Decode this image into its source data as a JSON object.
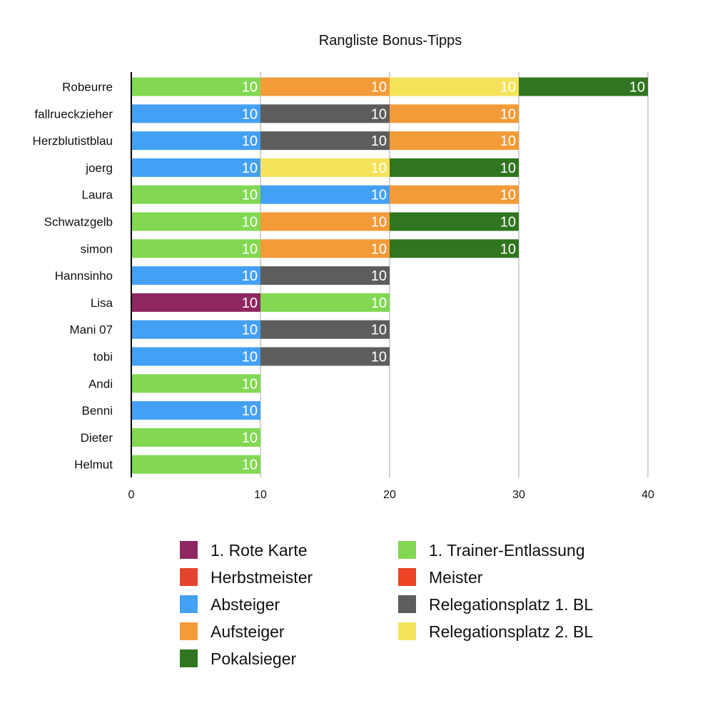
{
  "chart_data": {
    "type": "bar",
    "orientation": "horizontal",
    "stacked": true,
    "title": "Rangliste Bonus-Tipps",
    "xlabel": "",
    "ylabel": "",
    "xlim": [
      0,
      40
    ],
    "x_ticks": [
      "0",
      "10",
      "20",
      "30",
      "40"
    ],
    "grid": true,
    "legend_position": "bottom",
    "categories": [
      "Robeurre",
      "fallrueckzieher",
      "Herzblutistblau",
      "joerg",
      "Laura",
      "Schwatzgelb",
      "simon",
      "Hannsinho",
      "Lisa",
      "Mani 07",
      "tobi",
      "Andi",
      "Benni",
      "Dieter",
      "Helmut"
    ],
    "series": [
      {
        "name": "1. Rote Karte",
        "color": "#8e2661"
      },
      {
        "name": "1. Trainer-Entlassung",
        "color": "#82d852"
      },
      {
        "name": "Herbstmeister",
        "color": "#e5432e"
      },
      {
        "name": "Meister",
        "color": "#ec4425"
      },
      {
        "name": "Absteiger",
        "color": "#44a0f5"
      },
      {
        "name": "Relegationsplatz 1. BL",
        "color": "#5d5d5d"
      },
      {
        "name": "Aufsteiger",
        "color": "#f29b38"
      },
      {
        "name": "Relegationsplatz 2. BL",
        "color": "#f6e35a"
      },
      {
        "name": "Pokalsieger",
        "color": "#30751f"
      }
    ],
    "rows": [
      {
        "label": "Robeurre",
        "segments": [
          {
            "series": "1. Trainer-Entlassung",
            "value": 10,
            "label": "10"
          },
          {
            "series": "Aufsteiger",
            "value": 10,
            "label": "10"
          },
          {
            "series": "Relegationsplatz 2. BL",
            "value": 10,
            "label": "10"
          },
          {
            "series": "Pokalsieger",
            "value": 10,
            "label": "10"
          }
        ]
      },
      {
        "label": "fallrueckzieher",
        "segments": [
          {
            "series": "Absteiger",
            "value": 10,
            "label": "10"
          },
          {
            "series": "Relegationsplatz 1. BL",
            "value": 10,
            "label": "10"
          },
          {
            "series": "Aufsteiger",
            "value": 10,
            "label": "10"
          }
        ]
      },
      {
        "label": "Herzblutistblau",
        "segments": [
          {
            "series": "Absteiger",
            "value": 10,
            "label": "10"
          },
          {
            "series": "Relegationsplatz 1. BL",
            "value": 10,
            "label": "10"
          },
          {
            "series": "Aufsteiger",
            "value": 10,
            "label": "10"
          }
        ]
      },
      {
        "label": "joerg",
        "segments": [
          {
            "series": "Absteiger",
            "value": 10,
            "label": "10"
          },
          {
            "series": "Relegationsplatz 2. BL",
            "value": 10,
            "label": "10"
          },
          {
            "series": "Pokalsieger",
            "value": 10,
            "label": "10"
          }
        ]
      },
      {
        "label": "Laura",
        "segments": [
          {
            "series": "1. Trainer-Entlassung",
            "value": 10,
            "label": "10"
          },
          {
            "series": "Absteiger",
            "value": 10,
            "label": "10"
          },
          {
            "series": "Aufsteiger",
            "value": 10,
            "label": "10"
          }
        ]
      },
      {
        "label": "Schwatzgelb",
        "segments": [
          {
            "series": "1. Trainer-Entlassung",
            "value": 10,
            "label": "10"
          },
          {
            "series": "Aufsteiger",
            "value": 10,
            "label": "10"
          },
          {
            "series": "Pokalsieger",
            "value": 10,
            "label": "10"
          }
        ]
      },
      {
        "label": "simon",
        "segments": [
          {
            "series": "1. Trainer-Entlassung",
            "value": 10,
            "label": "10"
          },
          {
            "series": "Aufsteiger",
            "value": 10,
            "label": "10"
          },
          {
            "series": "Pokalsieger",
            "value": 10,
            "label": "10"
          }
        ]
      },
      {
        "label": "Hannsinho",
        "segments": [
          {
            "series": "Absteiger",
            "value": 10,
            "label": "10"
          },
          {
            "series": "Relegationsplatz 1. BL",
            "value": 10,
            "label": "10"
          }
        ]
      },
      {
        "label": "Lisa",
        "segments": [
          {
            "series": "1. Rote Karte",
            "value": 10,
            "label": "10"
          },
          {
            "series": "1. Trainer-Entlassung",
            "value": 10,
            "label": "10"
          }
        ]
      },
      {
        "label": "Mani 07",
        "segments": [
          {
            "series": "Absteiger",
            "value": 10,
            "label": "10"
          },
          {
            "series": "Relegationsplatz 1. BL",
            "value": 10,
            "label": "10"
          }
        ]
      },
      {
        "label": "tobi",
        "segments": [
          {
            "series": "Absteiger",
            "value": 10,
            "label": "10"
          },
          {
            "series": "Relegationsplatz 1. BL",
            "value": 10,
            "label": "10"
          }
        ]
      },
      {
        "label": "Andi",
        "segments": [
          {
            "series": "1. Trainer-Entlassung",
            "value": 10,
            "label": "10"
          }
        ]
      },
      {
        "label": "Benni",
        "segments": [
          {
            "series": "Absteiger",
            "value": 10,
            "label": "10"
          }
        ]
      },
      {
        "label": "Dieter",
        "segments": [
          {
            "series": "1. Trainer-Entlassung",
            "value": 10,
            "label": "10"
          }
        ]
      },
      {
        "label": "Helmut",
        "segments": [
          {
            "series": "1. Trainer-Entlassung",
            "value": 10,
            "label": "10"
          }
        ]
      }
    ],
    "legend": [
      {
        "name": "1. Rote Karte",
        "color": "#8e2661"
      },
      {
        "name": "Herbstmeister",
        "color": "#e5432e"
      },
      {
        "name": "Absteiger",
        "color": "#44a0f5"
      },
      {
        "name": "Aufsteiger",
        "color": "#f29b38"
      },
      {
        "name": "Pokalsieger",
        "color": "#30751f"
      },
      {
        "name": "1. Trainer-Entlassung",
        "color": "#82d852"
      },
      {
        "name": "Meister",
        "color": "#ec4425"
      },
      {
        "name": "Relegationsplatz 1. BL",
        "color": "#5d5d5d"
      },
      {
        "name": "Relegationsplatz 2. BL",
        "color": "#f6e35a"
      }
    ]
  }
}
